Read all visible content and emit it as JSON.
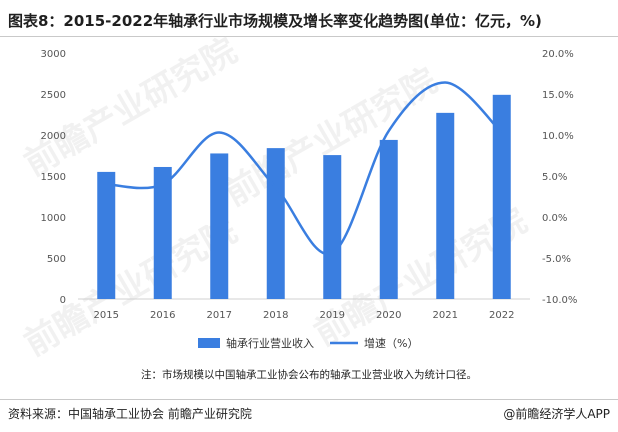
{
  "header": {
    "title": "图表8：2015-2022年轴承行业市场规模及增长率变化趋势图(单位：亿元，%)"
  },
  "footer": {
    "note": "注：市场规模以中国轴承工业协会公布的轴承工业营业收入为统计口径。",
    "source": "资料来源：中国轴承工业协会 前瞻产业研究院",
    "brand": "@前瞻经济学人APP"
  },
  "watermarks": [
    "前瞻产业研究院",
    "前瞻产业研究院",
    "前瞻产业研究院",
    "前瞻产业研究院"
  ],
  "colors": {
    "bar": "#3a7ee0",
    "line": "#3a7ee0",
    "axis": "#d0d0d0",
    "text": "#555555"
  },
  "chart_data": {
    "type": "bar",
    "categories": [
      "2015",
      "2016",
      "2017",
      "2018",
      "2019",
      "2020",
      "2021",
      "2022"
    ],
    "series": [
      {
        "name": "轴承行业营业收入",
        "type": "bar",
        "axis": "left",
        "values": [
          1550,
          1610,
          1775,
          1840,
          1755,
          1940,
          2270,
          2490
        ]
      },
      {
        "name": "增速（%）",
        "type": "line",
        "axis": "right",
        "smooth": true,
        "values": [
          4.0,
          4.0,
          10.3,
          3.6,
          -4.4,
          10.5,
          16.4,
          10.3
        ]
      }
    ],
    "y_left": {
      "ylim": [
        0,
        3000
      ],
      "ticks": [
        "0",
        "500",
        "1000",
        "1500",
        "2000",
        "2500",
        "3000"
      ]
    },
    "y_right": {
      "ylim": [
        -10,
        20
      ],
      "ticks": [
        "-10.0%",
        "-5.0%",
        "0.0%",
        "5.0%",
        "10.0%",
        "15.0%",
        "20.0%"
      ]
    },
    "grid": false,
    "legend_position": "bottom"
  }
}
